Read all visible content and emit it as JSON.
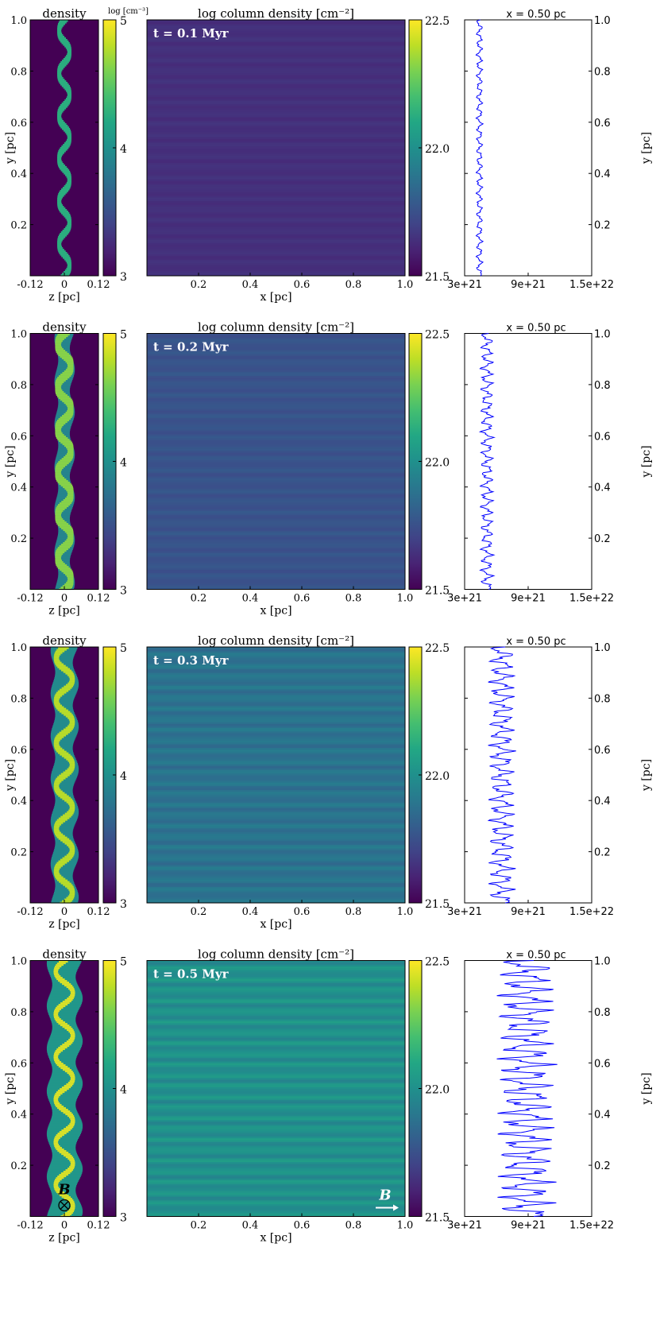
{
  "chart_data": {
    "type": "heatmap",
    "colormap": "viridis",
    "labels": {
      "density_title": "density",
      "density_cbar_title": "log [cm⁻³]",
      "column_title": "log column density [cm⁻²]",
      "profile_title": "x = 0.50 pc",
      "z_label": "z [pc]",
      "x_label": "x [pc]",
      "y_label": "y [pc]",
      "b_field_label": "B",
      "b_out_of_page_symbol": "⊗"
    },
    "density_axes": {
      "zlim": [
        -0.12,
        0.12
      ],
      "ylim": [
        0,
        1
      ],
      "z_ticks": [
        "-0.12",
        "0",
        "0.12"
      ],
      "y_ticks": [
        "0.2",
        "0.4",
        "0.6",
        "0.8",
        "1.0"
      ],
      "cbar_range": [
        3,
        5
      ],
      "cbar_ticks": [
        "3",
        "4",
        "5"
      ]
    },
    "column_axes": {
      "xlim": [
        0,
        1
      ],
      "ylim": [
        0,
        1
      ],
      "x_ticks": [
        "0.2",
        "0.4",
        "0.6",
        "0.8",
        "1.0"
      ],
      "cbar_range": [
        21.5,
        22.5
      ],
      "cbar_ticks": [
        "21.5",
        "22.0",
        "22.5"
      ]
    },
    "profile_axes": {
      "xlim": [
        3e+21,
        1.5e+22
      ],
      "x_ticks": [
        "3e+21",
        "9e+21",
        "1.5e+22"
      ],
      "y_ticks": [
        "0.2",
        "0.4",
        "0.6",
        "0.8",
        "1.0"
      ],
      "ylim": [
        0,
        1
      ]
    },
    "panels": [
      {
        "time_label": "t = 0.1 Myr",
        "base_log_column": 21.64,
        "stripe_amplitude": 0.012,
        "filament_halfwidth_pc": 0.011,
        "filament_amplitude_pc": 0.018,
        "filament_log_peak": 4.25,
        "envelope_halfwidth_pc": 0,
        "envelope_log": 3,
        "profile_mean": 4.4e+21,
        "profile_amplitude": 3e+20,
        "show_b_field": false
      },
      {
        "time_label": "t = 0.2 Myr",
        "base_log_column": 21.76,
        "stripe_amplitude": 0.018,
        "filament_halfwidth_pc": 0.016,
        "filament_amplitude_pc": 0.022,
        "filament_log_peak": 4.65,
        "envelope_halfwidth_pc": 0.028,
        "envelope_log": 3.9,
        "profile_mean": 5.1e+21,
        "profile_amplitude": 6e+20,
        "show_b_field": false
      },
      {
        "time_label": "t = 0.3 Myr",
        "base_log_column": 21.88,
        "stripe_amplitude": 0.032,
        "filament_halfwidth_pc": 0.014,
        "filament_amplitude_pc": 0.028,
        "filament_log_peak": 4.8,
        "envelope_halfwidth_pc": 0.04,
        "envelope_log": 3.95,
        "profile_mean": 6.5e+21,
        "profile_amplitude": 1.2e+21,
        "show_b_field": false
      },
      {
        "time_label": "t = 0.5 Myr",
        "base_log_column": 22,
        "stripe_amplitude": 0.045,
        "filament_halfwidth_pc": 0.012,
        "filament_amplitude_pc": 0.03,
        "filament_log_peak": 4.9,
        "envelope_halfwidth_pc": 0.052,
        "envelope_log": 4.05,
        "profile_mean": 8.8e+21,
        "profile_amplitude": 2.6e+21,
        "show_b_field": true
      }
    ]
  }
}
